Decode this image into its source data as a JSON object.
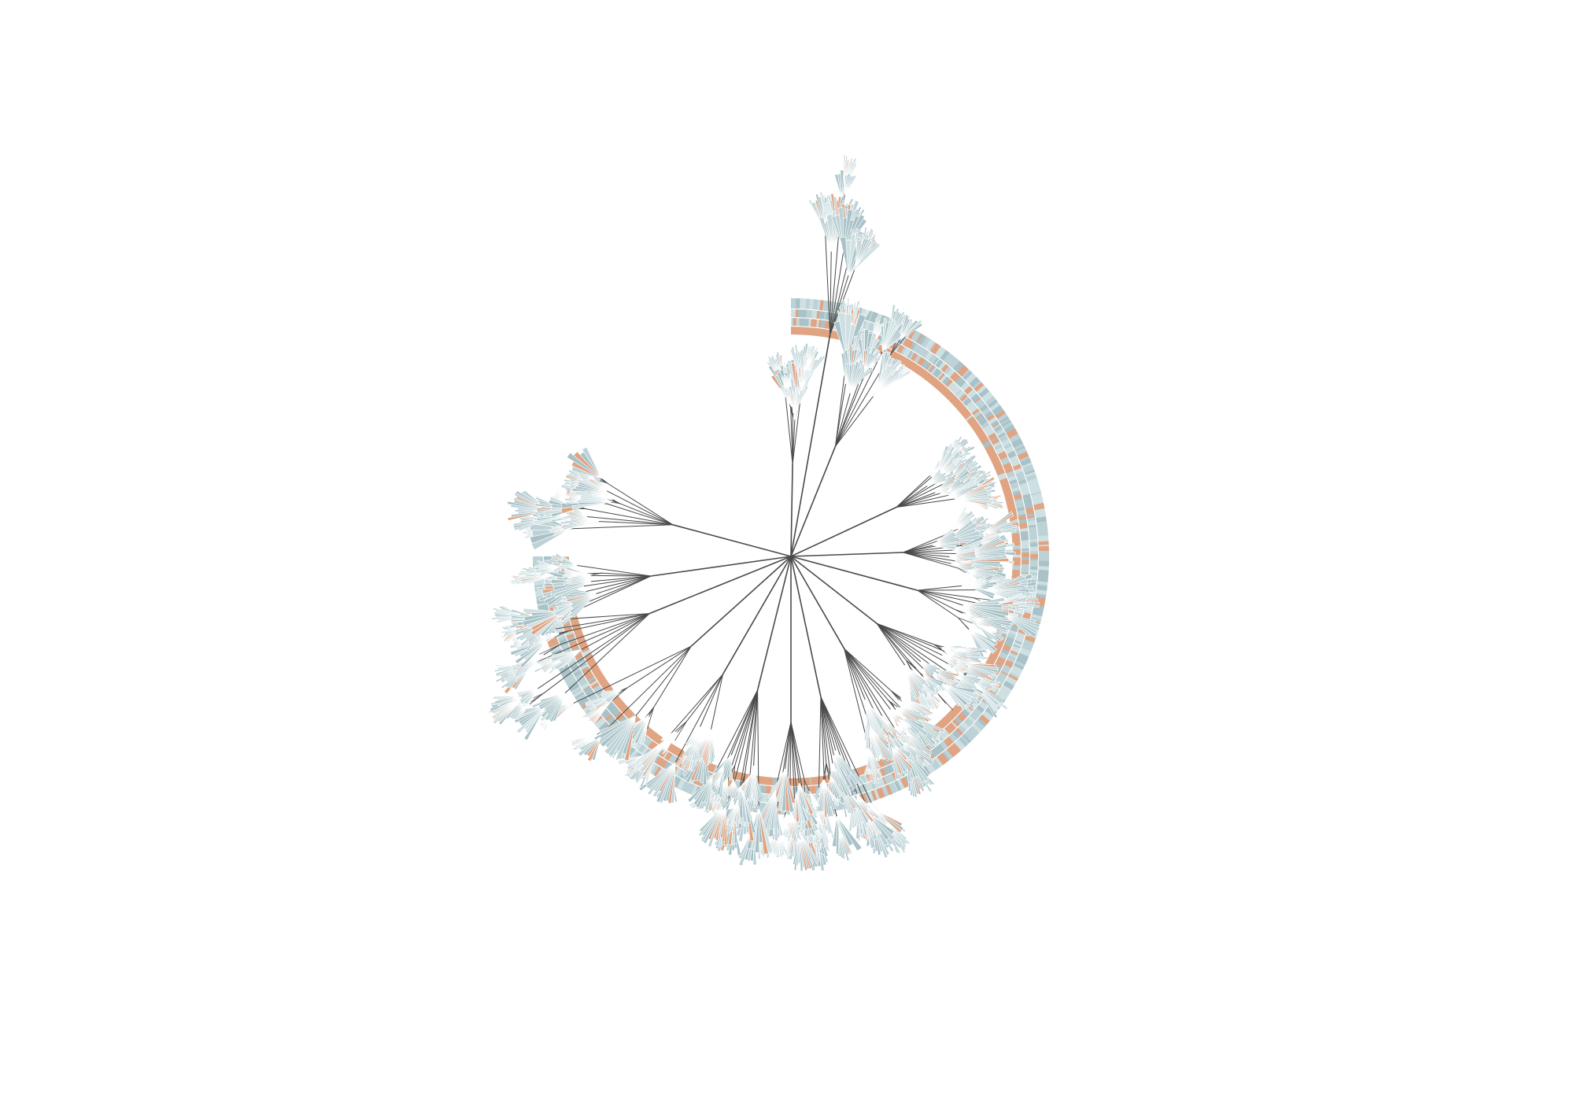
{
  "figure": {
    "type": "circular-phylogenetic-tree",
    "background": "#ffffff",
    "colors": {
      "branch": "#4a4a4a",
      "leaf_blue": "#bcd2d6",
      "leaf_blue_light": "#cfe0e3",
      "leaf_blue_dark": "#a9c2c7",
      "leaf_orange": "#e0a483",
      "ring_separator": "#ffffff"
    },
    "ring": {
      "ring_count": 4,
      "start_heading": "north",
      "end_heading": "west",
      "sweep_degrees": 270,
      "direction": "clockwise",
      "orange_share_by_ring": [
        0.93,
        0.32,
        0.22,
        0.12
      ]
    },
    "tree": {
      "clade_count": 16,
      "tip_colors": [
        "leaf_blue",
        "leaf_orange"
      ]
    }
  }
}
